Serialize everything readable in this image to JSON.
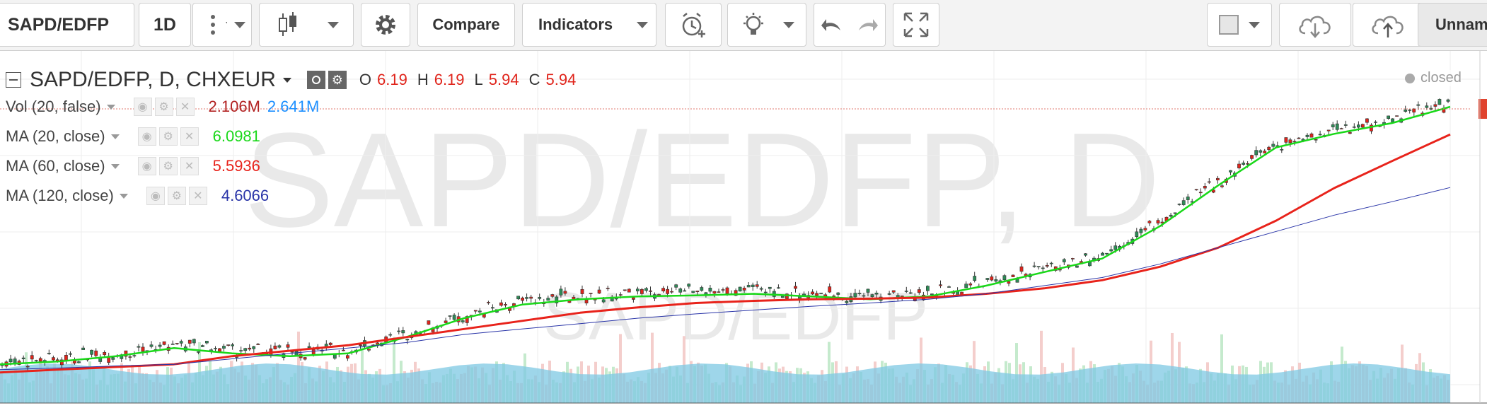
{
  "toolbar": {
    "symbol": "SAPD/EDFP",
    "interval": "1D",
    "compare": "Compare",
    "indicators": "Indicators",
    "layout_name": "Unnam"
  },
  "header": {
    "title": "SAPD/EDFP, D, CHXEUR",
    "o_label": "O",
    "o": "6.19",
    "h_label": "H",
    "h": "6.19",
    "l_label": "L",
    "l": "5.94",
    "c_label": "C",
    "c": "5.94",
    "status": "closed"
  },
  "indicators": [
    {
      "name": "Vol (20, false)",
      "value": "2.106M",
      "value2": "2.641M",
      "color": "#b22222",
      "color2": "#1e90ff"
    },
    {
      "name": "MA (20, close)",
      "value": "6.0981",
      "color": "#19d819"
    },
    {
      "name": "MA (60, close)",
      "value": "5.5936",
      "color": "#e8231b"
    },
    {
      "name": "MA (120, close)",
      "value": "4.6066",
      "color": "#2a35a8"
    }
  ],
  "watermark": {
    "big": "SAPD/EDFP, D",
    "small": "SAPD/EDFP"
  },
  "colors": {
    "up": "#2e8b57",
    "down": "#e0241b",
    "ma20": "#19d819",
    "ma60": "#e8231b",
    "ma120": "#2a35a8",
    "volume": "#7ec8e3"
  },
  "chart_data": {
    "type": "line",
    "title": "SAPD/EDFP, D, CHXEUR",
    "x": [
      0,
      10,
      20,
      30,
      40,
      50,
      60,
      70,
      80,
      90,
      100,
      110,
      120,
      130,
      140,
      150,
      160,
      170,
      180,
      190,
      200,
      210,
      220,
      230,
      240,
      250
    ],
    "series": [
      {
        "name": "MA (20, close)",
        "color": "#19d819",
        "values": [
          1.35,
          1.4,
          1.5,
          1.65,
          1.55,
          1.5,
          1.55,
          1.85,
          2.2,
          2.45,
          2.55,
          2.6,
          2.62,
          2.65,
          2.6,
          2.55,
          2.6,
          2.8,
          3.05,
          3.3,
          3.9,
          4.65,
          5.35,
          5.6,
          5.8,
          6.1
        ]
      },
      {
        "name": "MA (60, close)",
        "color": "#e8231b",
        "values": [
          1.2,
          1.25,
          1.3,
          1.35,
          1.5,
          1.6,
          1.7,
          1.85,
          2.0,
          2.15,
          2.3,
          2.4,
          2.48,
          2.52,
          2.55,
          2.56,
          2.58,
          2.65,
          2.75,
          2.9,
          3.15,
          3.5,
          4.0,
          4.6,
          5.1,
          5.59
        ]
      },
      {
        "name": "MA (120, close)",
        "color": "#2a35a8",
        "values": [
          1.25,
          1.28,
          1.32,
          1.35,
          1.45,
          1.55,
          1.65,
          1.75,
          1.9,
          2.0,
          2.1,
          2.2,
          2.28,
          2.35,
          2.42,
          2.48,
          2.55,
          2.65,
          2.8,
          2.95,
          3.2,
          3.5,
          3.8,
          4.1,
          4.35,
          4.61
        ]
      }
    ],
    "ylim": [
      1.0,
      7.0
    ],
    "grid": true,
    "xlabel": "",
    "ylabel": ""
  }
}
